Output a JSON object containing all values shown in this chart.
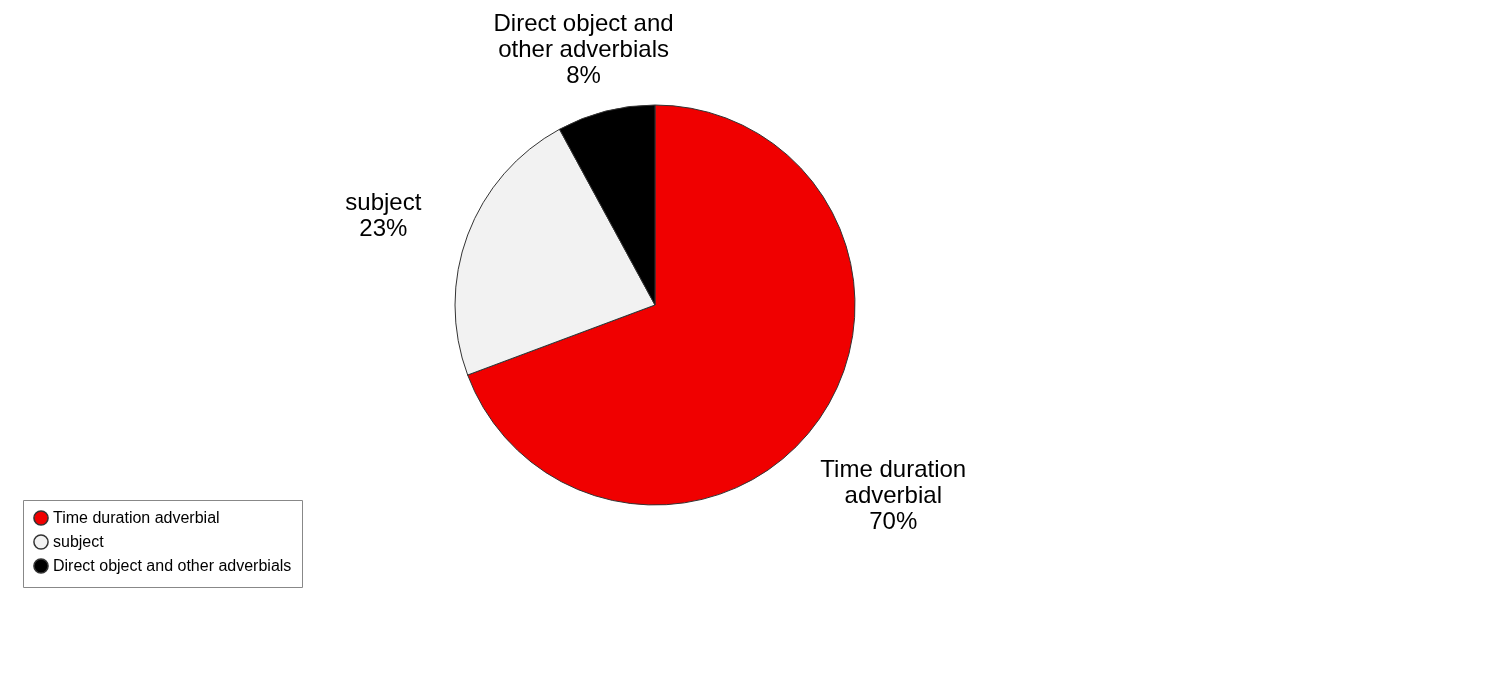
{
  "chart_data": {
    "type": "pie",
    "categories": [
      "Time duration adverbial",
      "subject",
      "Direct object and other adverbials"
    ],
    "values": [
      70,
      23,
      8
    ],
    "value_labels": [
      "70%",
      "23%",
      "8%"
    ],
    "colors": [
      "#f00000",
      "#f2f2f2",
      "#000000"
    ],
    "legend": "bottom left"
  }
}
